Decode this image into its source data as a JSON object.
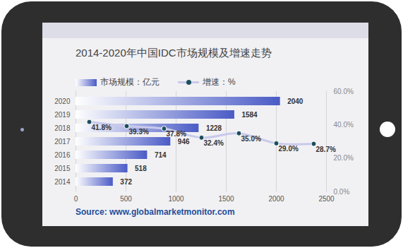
{
  "chart_data": {
    "type": "bar",
    "title": "2014-2020年中国IDC市场规模及增速走势",
    "orientation": "horizontal",
    "categories": [
      "2014",
      "2015",
      "2016",
      "2017",
      "2018",
      "2019",
      "2020"
    ],
    "series": [
      {
        "name": "市场规模：亿元",
        "type": "bar",
        "color": "#4a5bc6",
        "values": [
          372,
          518,
          714,
          946,
          1228,
          1584,
          2040
        ]
      },
      {
        "name": "增速：%",
        "type": "line",
        "axis": "y2",
        "color": "#c9c9ec",
        "marker": "circle",
        "values": [
          41.8,
          39.3,
          37.8,
          32.4,
          35.0,
          29.0,
          28.7
        ],
        "value_labels": [
          "41.8%",
          "39.3%",
          "37.8%",
          "32.4%",
          "35.0%",
          "29.0%",
          "28.7%"
        ]
      }
    ],
    "xlim": [
      0,
      2500
    ],
    "xticks": [
      0,
      500,
      1000,
      1500,
      2000,
      2500
    ],
    "y2lim": [
      0,
      60
    ],
    "y2ticks": [
      {
        "value": 0,
        "label": "0.0%"
      },
      {
        "value": 20,
        "label": "20.0%"
      },
      {
        "value": 40,
        "label": "40.0%"
      },
      {
        "value": 60,
        "label": "60.0%"
      }
    ],
    "data_labels": true,
    "grid": true,
    "legend": "top",
    "source": "Source: www.globalmarketmonitor.com"
  }
}
